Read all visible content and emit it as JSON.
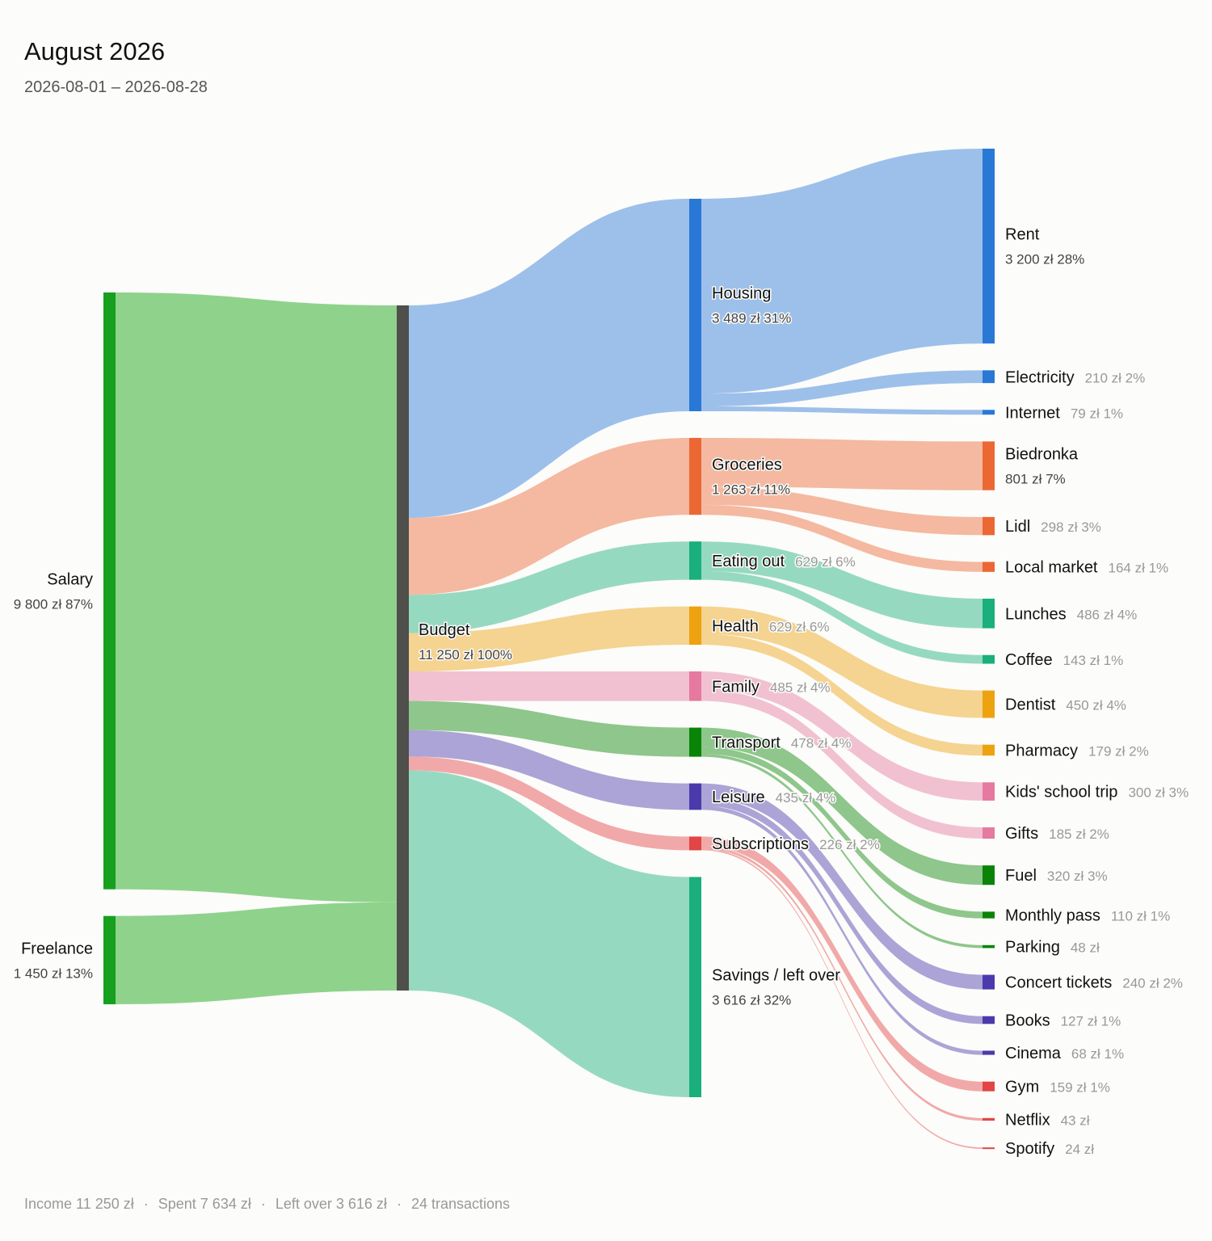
{
  "header": {
    "title": "August 2026",
    "subtitle": "2026-08-01 – 2026-08-28"
  },
  "footer": {
    "income": "Income 11 250 zł",
    "spent": "Spent 7 634 zł",
    "left_over": "Left over 3 616 zł",
    "transactions": "24 transactions",
    "separator": "·"
  },
  "chart_data": {
    "type": "sankey",
    "title": "August 2026",
    "subtitle": "2026-08-01 – 2026-08-28",
    "unit": "zł",
    "nodes": [
      {
        "id": "salary",
        "name": "Salary",
        "value": 9800,
        "amount": "9 800 zł",
        "pct": "87%",
        "column": 0,
        "color": "#16a01e"
      },
      {
        "id": "freelance",
        "name": "Freelance",
        "value": 1450,
        "amount": "1 450 zł",
        "pct": "13%",
        "column": 0,
        "color": "#16a01e"
      },
      {
        "id": "budget",
        "name": "Budget",
        "value": 11250,
        "amount": "11 250 zł",
        "pct": "100%",
        "column": 1,
        "color": "#4f4f4b"
      },
      {
        "id": "housing",
        "name": "Housing",
        "value": 3489,
        "amount": "3 489 zł",
        "pct": "31%",
        "column": 2,
        "color": "#2a78d6"
      },
      {
        "id": "groceries",
        "name": "Groceries",
        "value": 1263,
        "amount": "1 263 zł",
        "pct": "11%",
        "column": 2,
        "color": "#eb6834"
      },
      {
        "id": "eating_out",
        "name": "Eating out",
        "value": 629,
        "amount": "629 zł",
        "pct": "6%",
        "column": 2,
        "color": "#1aaf7c"
      },
      {
        "id": "health",
        "name": "Health",
        "value": 629,
        "amount": "629 zł",
        "pct": "6%",
        "column": 2,
        "color": "#eda20f"
      },
      {
        "id": "family",
        "name": "Family",
        "value": 485,
        "amount": "485 zł",
        "pct": "4%",
        "column": 2,
        "color": "#e5799f"
      },
      {
        "id": "transport",
        "name": "Transport",
        "value": 478,
        "amount": "478 zł",
        "pct": "4%",
        "column": 2,
        "color": "#098407"
      },
      {
        "id": "leisure",
        "name": "Leisure",
        "value": 435,
        "amount": "435 zł",
        "pct": "4%",
        "column": 2,
        "color": "#4b3aab"
      },
      {
        "id": "subscriptions",
        "name": "Subscriptions",
        "value": 226,
        "amount": "226 zł",
        "pct": "2%",
        "column": 2,
        "color": "#e24545"
      },
      {
        "id": "savings",
        "name": "Savings / left over",
        "value": 3616,
        "amount": "3 616 zł",
        "pct": "32%",
        "column": 2,
        "color": "#1aaf7c"
      },
      {
        "id": "rent",
        "name": "Rent",
        "value": 3200,
        "amount": "3 200 zł",
        "pct": "28%",
        "column": 3,
        "color": "#2a78d6"
      },
      {
        "id": "electricity",
        "name": "Electricity",
        "value": 210,
        "amount": "210 zł",
        "pct": "2%",
        "column": 3,
        "color": "#2a78d6"
      },
      {
        "id": "internet",
        "name": "Internet",
        "value": 79,
        "amount": "79 zł",
        "pct": "1%",
        "column": 3,
        "color": "#2a78d6"
      },
      {
        "id": "biedronka",
        "name": "Biedronka",
        "value": 801,
        "amount": "801 zł",
        "pct": "7%",
        "column": 3,
        "color": "#eb6834"
      },
      {
        "id": "lidl",
        "name": "Lidl",
        "value": 298,
        "amount": "298 zł",
        "pct": "3%",
        "column": 3,
        "color": "#eb6834"
      },
      {
        "id": "local_market",
        "name": "Local market",
        "value": 164,
        "amount": "164 zł",
        "pct": "1%",
        "column": 3,
        "color": "#eb6834"
      },
      {
        "id": "lunches",
        "name": "Lunches",
        "value": 486,
        "amount": "486 zł",
        "pct": "4%",
        "column": 3,
        "color": "#1aaf7c"
      },
      {
        "id": "coffee",
        "name": "Coffee",
        "value": 143,
        "amount": "143 zł",
        "pct": "1%",
        "column": 3,
        "color": "#1aaf7c"
      },
      {
        "id": "dentist",
        "name": "Dentist",
        "value": 450,
        "amount": "450 zł",
        "pct": "4%",
        "column": 3,
        "color": "#eda20f"
      },
      {
        "id": "pharmacy",
        "name": "Pharmacy",
        "value": 179,
        "amount": "179 zł",
        "pct": "2%",
        "column": 3,
        "color": "#eda20f"
      },
      {
        "id": "kids_trip",
        "name": "Kids' school trip",
        "value": 300,
        "amount": "300 zł",
        "pct": "3%",
        "column": 3,
        "color": "#e5799f"
      },
      {
        "id": "gifts",
        "name": "Gifts",
        "value": 185,
        "amount": "185 zł",
        "pct": "2%",
        "column": 3,
        "color": "#e5799f"
      },
      {
        "id": "fuel",
        "name": "Fuel",
        "value": 320,
        "amount": "320 zł",
        "pct": "3%",
        "column": 3,
        "color": "#098407"
      },
      {
        "id": "monthly_pass",
        "name": "Monthly pass",
        "value": 110,
        "amount": "110 zł",
        "pct": "1%",
        "column": 3,
        "color": "#098407"
      },
      {
        "id": "parking",
        "name": "Parking",
        "value": 48,
        "amount": "48 zł",
        "pct": "",
        "column": 3,
        "color": "#098407"
      },
      {
        "id": "concert",
        "name": "Concert tickets",
        "value": 240,
        "amount": "240 zł",
        "pct": "2%",
        "column": 3,
        "color": "#4b3aab"
      },
      {
        "id": "books",
        "name": "Books",
        "value": 127,
        "amount": "127 zł",
        "pct": "1%",
        "column": 3,
        "color": "#4b3aab"
      },
      {
        "id": "cinema",
        "name": "Cinema",
        "value": 68,
        "amount": "68 zł",
        "pct": "1%",
        "column": 3,
        "color": "#4b3aab"
      },
      {
        "id": "gym",
        "name": "Gym",
        "value": 159,
        "amount": "159 zł",
        "pct": "1%",
        "column": 3,
        "color": "#e24545"
      },
      {
        "id": "netflix",
        "name": "Netflix",
        "value": 43,
        "amount": "43 zł",
        "pct": "",
        "column": 3,
        "color": "#e24545"
      },
      {
        "id": "spotify",
        "name": "Spotify",
        "value": 24,
        "amount": "24 zł",
        "pct": "",
        "column": 3,
        "color": "#e24545"
      }
    ],
    "links": [
      {
        "source": "salary",
        "target": "budget",
        "value": 9800
      },
      {
        "source": "freelance",
        "target": "budget",
        "value": 1450
      },
      {
        "source": "budget",
        "target": "housing",
        "value": 3489
      },
      {
        "source": "budget",
        "target": "groceries",
        "value": 1263
      },
      {
        "source": "budget",
        "target": "eating_out",
        "value": 629
      },
      {
        "source": "budget",
        "target": "health",
        "value": 629
      },
      {
        "source": "budget",
        "target": "family",
        "value": 485
      },
      {
        "source": "budget",
        "target": "transport",
        "value": 478
      },
      {
        "source": "budget",
        "target": "leisure",
        "value": 435
      },
      {
        "source": "budget",
        "target": "subscriptions",
        "value": 226
      },
      {
        "source": "budget",
        "target": "savings",
        "value": 3616
      },
      {
        "source": "housing",
        "target": "rent",
        "value": 3200
      },
      {
        "source": "housing",
        "target": "electricity",
        "value": 210
      },
      {
        "source": "housing",
        "target": "internet",
        "value": 79
      },
      {
        "source": "groceries",
        "target": "biedronka",
        "value": 801
      },
      {
        "source": "groceries",
        "target": "lidl",
        "value": 298
      },
      {
        "source": "groceries",
        "target": "local_market",
        "value": 164
      },
      {
        "source": "eating_out",
        "target": "lunches",
        "value": 486
      },
      {
        "source": "eating_out",
        "target": "coffee",
        "value": 143
      },
      {
        "source": "health",
        "target": "dentist",
        "value": 450
      },
      {
        "source": "health",
        "target": "pharmacy",
        "value": 179
      },
      {
        "source": "family",
        "target": "kids_trip",
        "value": 300
      },
      {
        "source": "family",
        "target": "gifts",
        "value": 185
      },
      {
        "source": "transport",
        "target": "fuel",
        "value": 320
      },
      {
        "source": "transport",
        "target": "monthly_pass",
        "value": 110
      },
      {
        "source": "transport",
        "target": "parking",
        "value": 48
      },
      {
        "source": "leisure",
        "target": "concert",
        "value": 240
      },
      {
        "source": "leisure",
        "target": "books",
        "value": 127
      },
      {
        "source": "leisure",
        "target": "cinema",
        "value": 68
      },
      {
        "source": "subscriptions",
        "target": "gym",
        "value": 159
      },
      {
        "source": "subscriptions",
        "target": "netflix",
        "value": 43
      },
      {
        "source": "subscriptions",
        "target": "spotify",
        "value": 24
      }
    ]
  }
}
